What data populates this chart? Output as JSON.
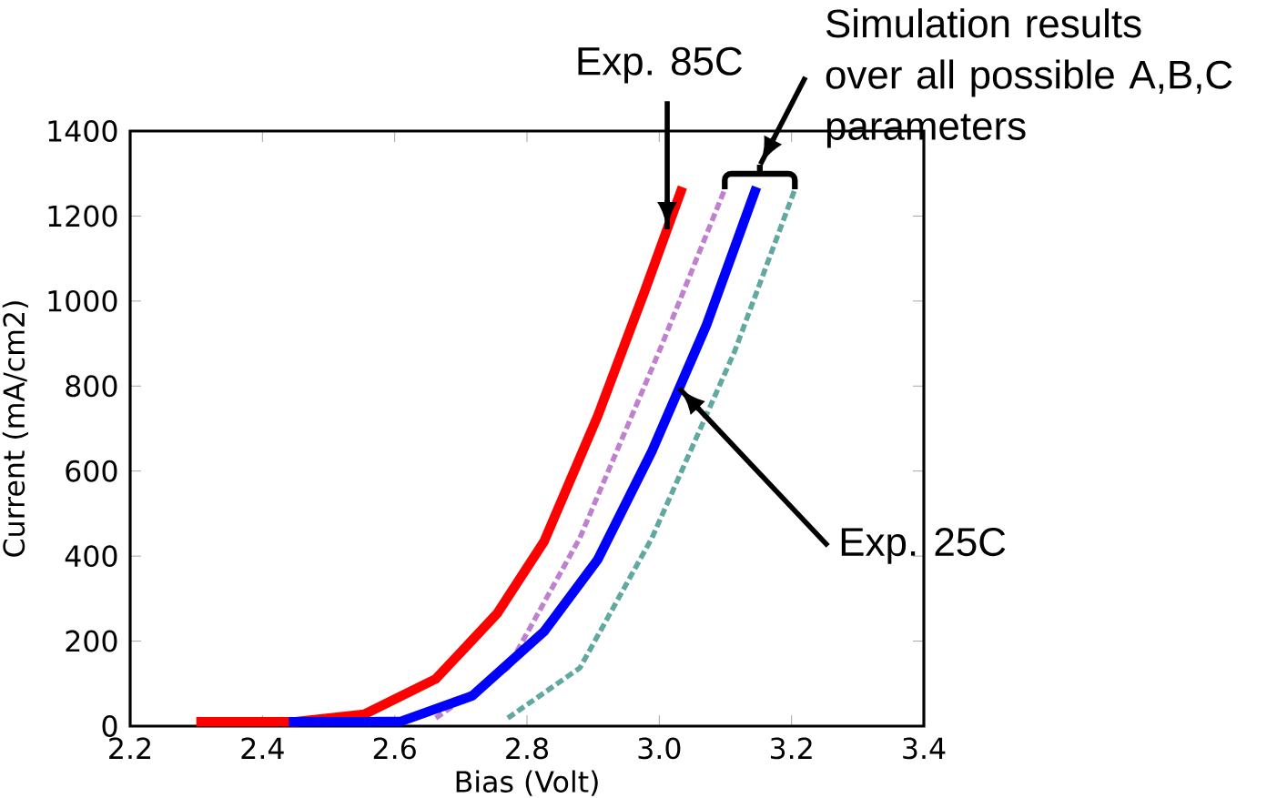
{
  "chart_data": {
    "type": "line",
    "xlabel": "Bias (Volt)",
    "ylabel": "Current (mA/cm2)",
    "xlim": [
      2.2,
      3.4
    ],
    "ylim": [
      0,
      1400
    ],
    "xticks": [
      {
        "value": 2.2,
        "label": "2.2"
      },
      {
        "value": 2.4,
        "label": "2.4"
      },
      {
        "value": 2.6,
        "label": "2.6"
      },
      {
        "value": 2.8,
        "label": "2.8"
      },
      {
        "value": 3.0,
        "label": "3.0"
      },
      {
        "value": 3.2,
        "label": "3.2"
      },
      {
        "value": 3.4,
        "label": "3.4"
      }
    ],
    "yticks": [
      0,
      200,
      400,
      600,
      800,
      1000,
      1200,
      1400
    ],
    "series": [
      {
        "color": "#c080d0",
        "line_style": "dashed",
        "x": [
          2.662,
          2.771,
          2.88,
          3.0,
          3.099
        ],
        "values": [
          19,
          137,
          443,
          882,
          1263
        ]
      },
      {
        "color": "#60a8a0",
        "line_style": "dashed",
        "x": [
          2.771,
          2.88,
          2.989,
          3.114,
          3.205
        ],
        "values": [
          19,
          137,
          443,
          882,
          1263
        ]
      },
      {
        "color": "#ff0000",
        "line_style": "solid",
        "x": [
          2.3,
          2.45,
          2.554,
          2.662,
          2.755,
          2.826,
          2.907,
          2.979,
          3.035
        ],
        "values": [
          10,
          10,
          28,
          111,
          265,
          435,
          730,
          1028,
          1268
        ]
      },
      {
        "color": "#0000ff",
        "line_style": "solid",
        "x": [
          2.44,
          2.55,
          2.609,
          2.717,
          2.826,
          2.907,
          2.989,
          3.071,
          3.147
        ],
        "values": [
          10,
          10,
          11,
          71,
          223,
          392,
          647,
          942,
          1268
        ]
      }
    ],
    "annotations": [
      {
        "text": "Exp. 85C",
        "x": 3.012,
        "y": 1169
      },
      {
        "text": "Exp. 25C",
        "x": 3.03,
        "y": 795
      },
      "Simulation results over all possible A,B,C parameters"
    ]
  }
}
